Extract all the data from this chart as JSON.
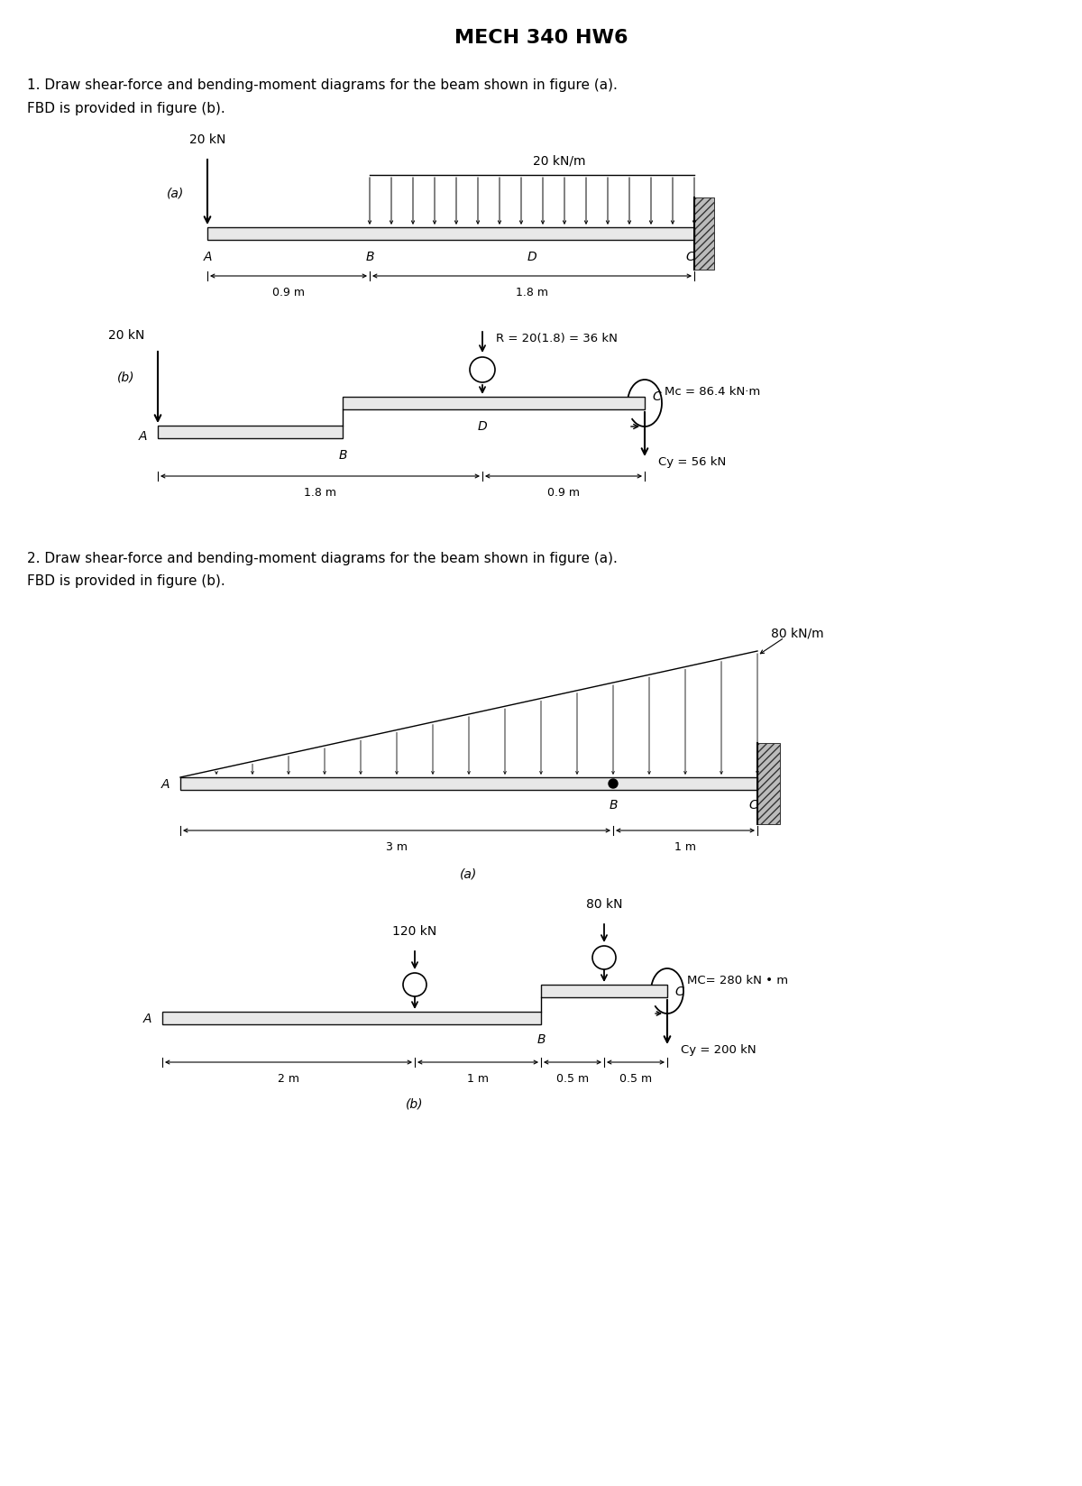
{
  "title": "MECH 340 HW6",
  "title_fontsize": 16,
  "title_fontweight": "bold",
  "bg_color": "#ffffff",
  "text_color": "#000000",
  "prob1_text_line1": "1. Draw shear-force and bending-moment diagrams for the beam shown in figure (a).",
  "prob1_text_line2": "FBD is provided in figure (b).",
  "prob2_text_line1": "2. Draw shear-force and bending-moment diagrams for the beam shown in figure (a).",
  "prob2_text_line2": "FBD is provided in figure (b).",
  "fig1a_label": "(a)",
  "fig1b_label": "(b)",
  "fig2a_label": "(a)",
  "fig2b_label": "(b)",
  "prob1_fig_a_point_load_label": "20 kN",
  "prob1_fig_a_dist_load_label": "20 kN/m",
  "prob1_fig_a_dim1": "0.9 m",
  "prob1_fig_a_dim2": "1.8 m",
  "prob1_fig_b_point_load_label": "20 kN",
  "prob1_fig_b_R_label": "R = 20(1.8) = 36 kN",
  "prob1_fig_b_Mc_label": "Mc = 86.4 kN·m",
  "prob1_fig_b_Cy_label": "Cy = 56 kN",
  "prob1_fig_b_dim1": "1.8 m",
  "prob1_fig_b_dim2": "0.9 m",
  "prob2_fig_a_dist_load_label": "80 kN/m",
  "prob2_fig_a_dim1": "3 m",
  "prob2_fig_a_dim2": "1 m",
  "prob2_fig_b_load1_label": "120 kN",
  "prob2_fig_b_load2_label": "80 kN",
  "prob2_fig_b_Mc_label": "MC= 280 kN • m",
  "prob2_fig_b_Cy_label": "Cy = 200 kN",
  "prob2_fig_b_dim1": "2 m",
  "prob2_fig_b_dim2": "1 m",
  "prob2_fig_b_dim3": "0.5 m",
  "prob2_fig_b_dim4": "0.5 m",
  "beam_color": "#e8e8e8",
  "beam_edge_color": "#111111",
  "wall_color": "#bbbbbb",
  "wall_hatch": "////"
}
